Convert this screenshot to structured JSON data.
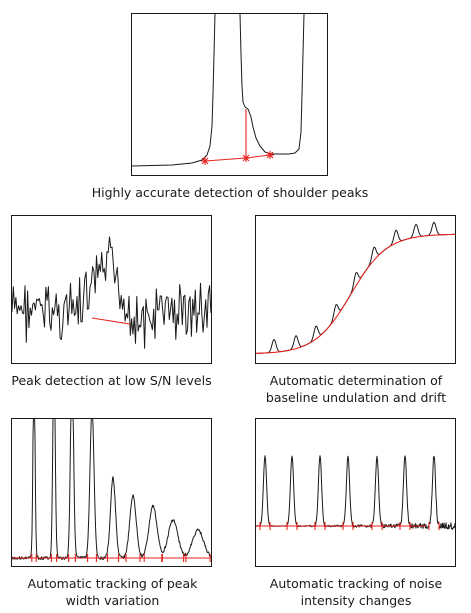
{
  "captions": {
    "shoulder": "Highly accurate detection of shoulder peaks",
    "low_sn": "Peak detection at low S/N levels",
    "baseline": "Automatic determination of baseline undulation and drift",
    "peak_width": "Automatic tracking of peak width variation",
    "noise": "Automatic tracking of noise intensity changes"
  },
  "colors": {
    "trace": "#1a1a1a",
    "baseline": "#e8231f",
    "frame": "#1a1a1a"
  }
}
